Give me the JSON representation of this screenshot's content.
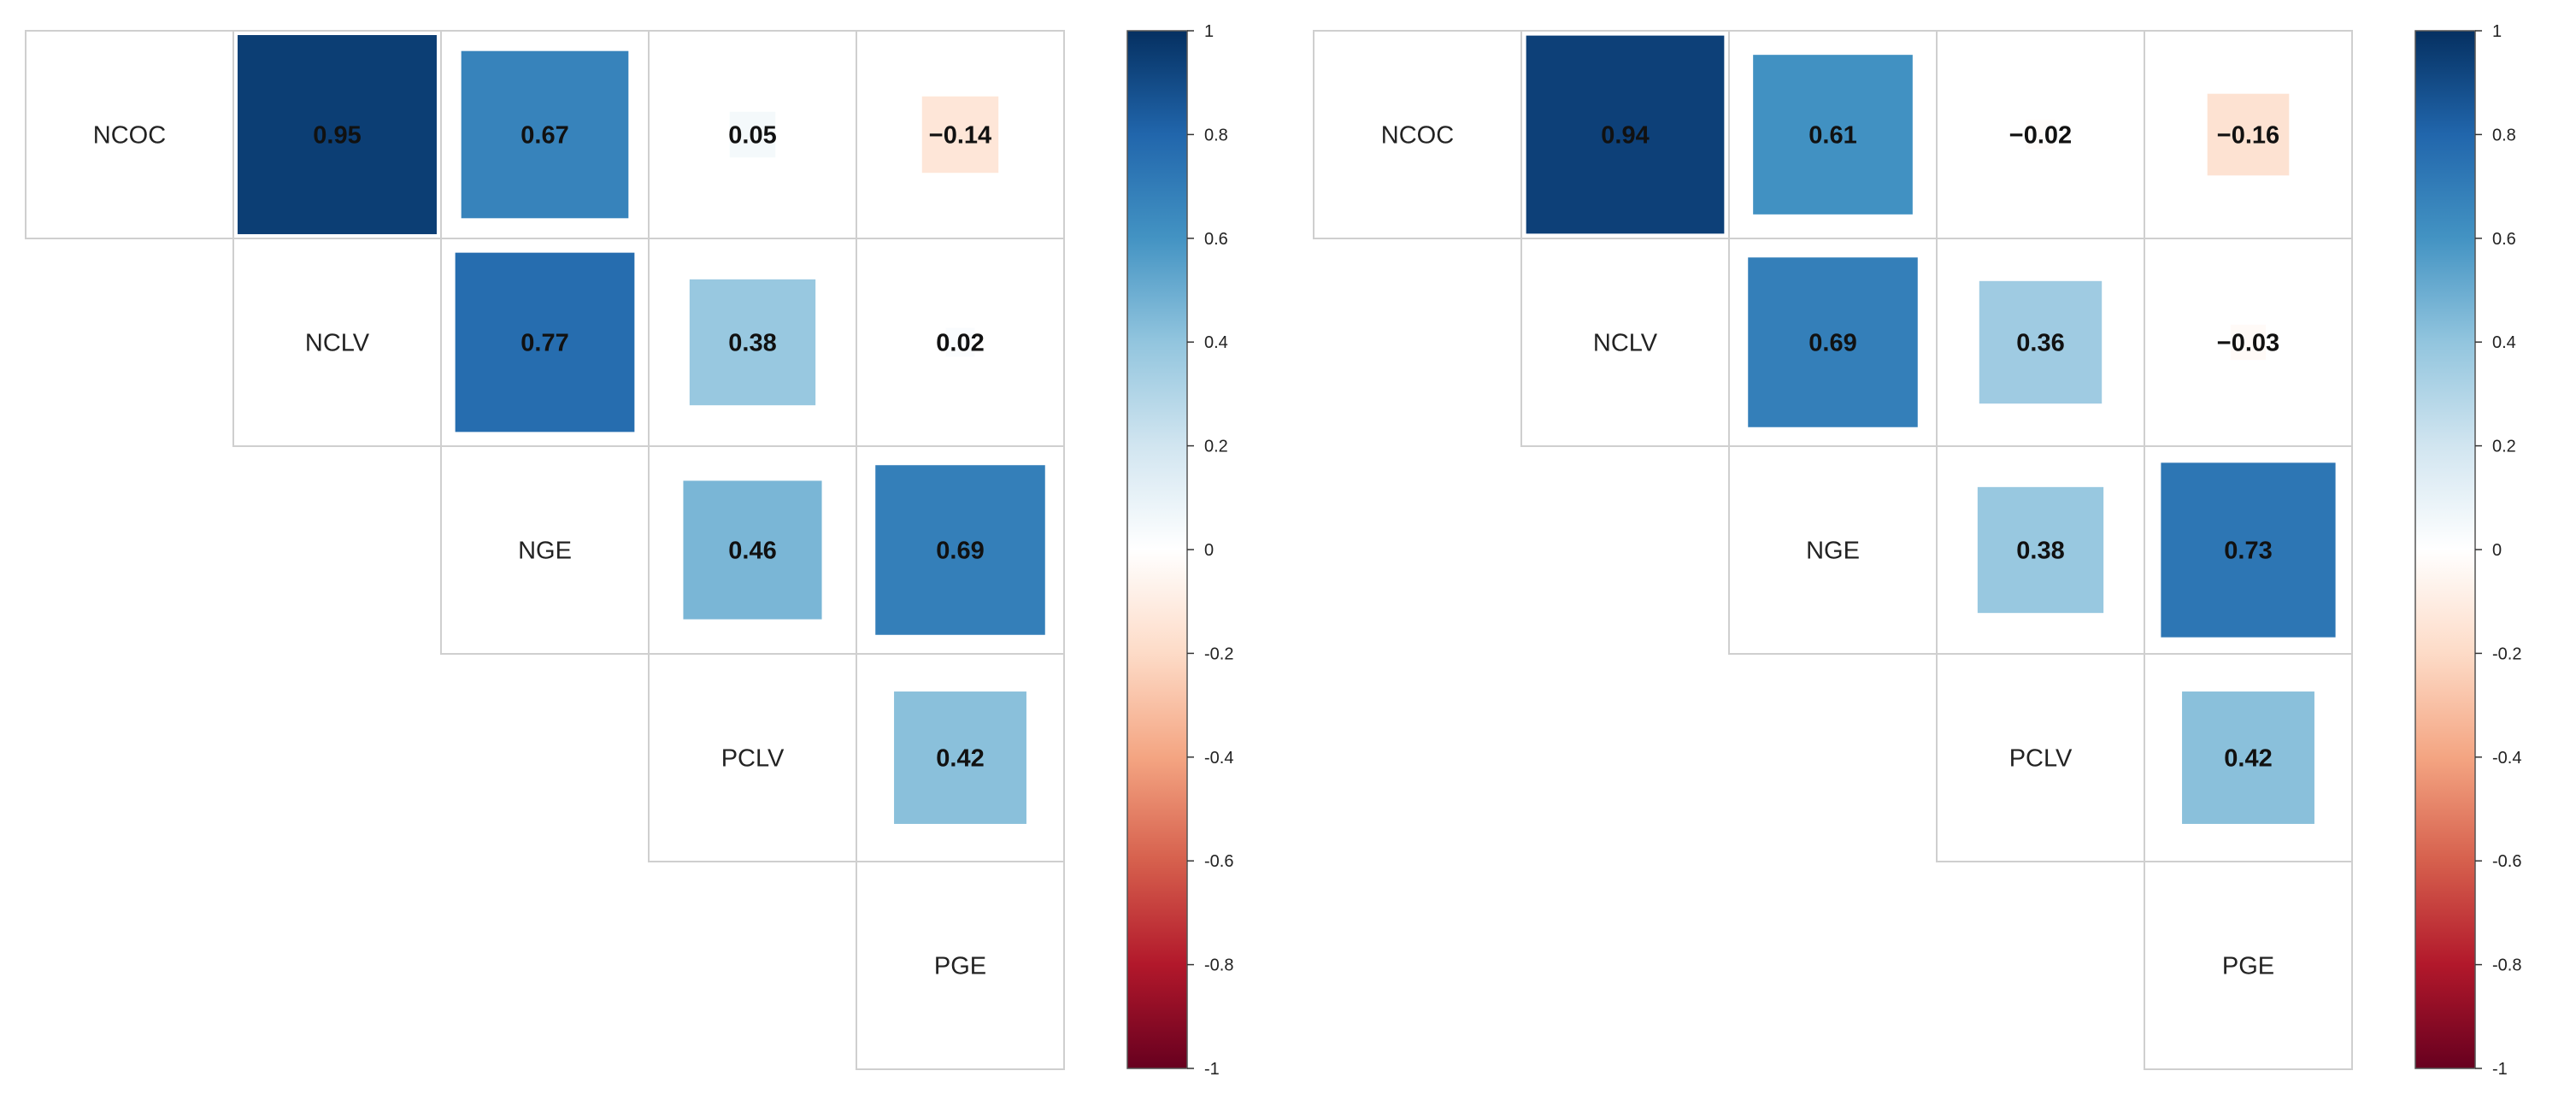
{
  "chart_data": [
    {
      "type": "heatmap",
      "subtype": "correlation-upper-triangle",
      "variables": [
        "NCOC",
        "NCLV",
        "NGE",
        "PCLV",
        "PGE"
      ],
      "correlations": [
        {
          "row": "NCOC",
          "col": "NCLV",
          "value": 0.95,
          "label": "0.95"
        },
        {
          "row": "NCOC",
          "col": "NGE",
          "value": 0.67,
          "label": "0.67"
        },
        {
          "row": "NCOC",
          "col": "PCLV",
          "value": 0.05,
          "label": "0.05"
        },
        {
          "row": "NCOC",
          "col": "PGE",
          "value": -0.14,
          "label": "−0.14"
        },
        {
          "row": "NCLV",
          "col": "NGE",
          "value": 0.77,
          "label": "0.77"
        },
        {
          "row": "NCLV",
          "col": "PCLV",
          "value": 0.38,
          "label": "0.38"
        },
        {
          "row": "NCLV",
          "col": "PGE",
          "value": 0.02,
          "label": "0.02"
        },
        {
          "row": "NGE",
          "col": "PCLV",
          "value": 0.46,
          "label": "0.46"
        },
        {
          "row": "NGE",
          "col": "PGE",
          "value": 0.69,
          "label": "0.69"
        },
        {
          "row": "PCLV",
          "col": "PGE",
          "value": 0.42,
          "label": "0.42"
        }
      ],
      "colorbar": {
        "range": [
          -1,
          1
        ],
        "ticks": [
          "1",
          "0.8",
          "0.6",
          "0.4",
          "0.2",
          "0",
          "-0.2",
          "-0.4",
          "-0.6",
          "-0.8",
          "-1"
        ],
        "low_color": "#67001F",
        "mid_color": "#FFFFFF",
        "high_color": "#053061"
      }
    },
    {
      "type": "heatmap",
      "subtype": "correlation-upper-triangle",
      "variables": [
        "NCOC",
        "NCLV",
        "NGE",
        "PCLV",
        "PGE"
      ],
      "correlations": [
        {
          "row": "NCOC",
          "col": "NCLV",
          "value": 0.94,
          "label": "0.94"
        },
        {
          "row": "NCOC",
          "col": "NGE",
          "value": 0.61,
          "label": "0.61"
        },
        {
          "row": "NCOC",
          "col": "PCLV",
          "value": -0.02,
          "label": "−0.02"
        },
        {
          "row": "NCOC",
          "col": "PGE",
          "value": -0.16,
          "label": "−0.16"
        },
        {
          "row": "NCLV",
          "col": "NGE",
          "value": 0.69,
          "label": "0.69"
        },
        {
          "row": "NCLV",
          "col": "PCLV",
          "value": 0.36,
          "label": "0.36"
        },
        {
          "row": "NCLV",
          "col": "PGE",
          "value": -0.03,
          "label": "−0.03"
        },
        {
          "row": "NGE",
          "col": "PCLV",
          "value": 0.38,
          "label": "0.38"
        },
        {
          "row": "NGE",
          "col": "PGE",
          "value": 0.73,
          "label": "0.73"
        },
        {
          "row": "PCLV",
          "col": "PGE",
          "value": 0.42,
          "label": "0.42"
        }
      ],
      "colorbar": {
        "range": [
          -1,
          1
        ],
        "ticks": [
          "1",
          "0.8",
          "0.6",
          "0.4",
          "0.2",
          "0",
          "-0.2",
          "-0.4",
          "-0.6",
          "-0.8",
          "-1"
        ],
        "low_color": "#67001F",
        "mid_color": "#FFFFFF",
        "high_color": "#053061"
      }
    }
  ]
}
